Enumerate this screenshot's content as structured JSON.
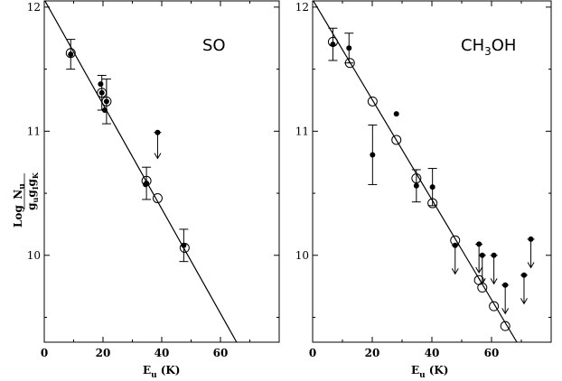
{
  "y_axis_label": {
    "prefix": "Log",
    "numerator": "N",
    "numerator_sub": "u",
    "denominator": "g",
    "denominator_subs": [
      "u",
      "I",
      "K"
    ],
    "denominator_between": "g"
  },
  "chart_data": [
    {
      "type": "scatter",
      "title": "SO",
      "xlabel": "E",
      "xlabel_sub": "u",
      "xlabel_unit": "(K)",
      "xlim": [
        0,
        80
      ],
      "ylim": [
        9.3,
        12.05
      ],
      "x_ticks": [
        "0",
        "20",
        "40",
        "60"
      ],
      "x_tick_values": [
        0,
        20,
        40,
        60
      ],
      "y_ticks": [
        "10",
        "11",
        "12"
      ],
      "y_tick_values": [
        10,
        11,
        12
      ],
      "fit_line": {
        "x": [
          0,
          65.5
        ],
        "y": [
          12.06,
          9.3
        ]
      },
      "observed": [
        {
          "x": 9,
          "y": 11.62,
          "err": 0.12
        },
        {
          "x": 19.2,
          "y": 11.38,
          "err": 0
        },
        {
          "x": 19.6,
          "y": 11.31,
          "err": 0.14
        },
        {
          "x": 20.6,
          "y": 11.17,
          "err": 0
        },
        {
          "x": 21.2,
          "y": 11.24,
          "err": 0.18
        },
        {
          "x": 34.5,
          "y": 10.57,
          "err": 0
        },
        {
          "x": 34.8,
          "y": 10.58,
          "err": 0.13
        },
        {
          "x": 47.5,
          "y": 10.08,
          "err": 0.13
        }
      ],
      "upper_limits": [
        {
          "x": 38.6,
          "y": 10.99,
          "to": 10.78
        }
      ],
      "model": [
        {
          "x": 9,
          "y": 11.63
        },
        {
          "x": 19.6,
          "y": 11.31
        },
        {
          "x": 21.2,
          "y": 11.24
        },
        {
          "x": 34.8,
          "y": 10.6
        },
        {
          "x": 38.6,
          "y": 10.46
        },
        {
          "x": 47.8,
          "y": 10.06
        }
      ]
    },
    {
      "type": "scatter",
      "title": "CH",
      "title_sub": "3",
      "title_rest": "OH",
      "xlabel": "E",
      "xlabel_sub": "u",
      "xlabel_unit": "(K)",
      "xlim": [
        0,
        80
      ],
      "ylim": [
        9.3,
        12.05
      ],
      "x_ticks": [
        "0",
        "20",
        "40",
        "60"
      ],
      "x_tick_values": [
        0,
        20,
        40,
        60
      ],
      "y_ticks": [
        "10",
        "11",
        "12"
      ],
      "y_tick_values": [
        10,
        11,
        12
      ],
      "fit_line": {
        "x": [
          0,
          68.5
        ],
        "y": [
          12.06,
          9.3
        ]
      },
      "observed": [
        {
          "x": 6.8,
          "y": 11.7,
          "err": 0.13
        },
        {
          "x": 12.2,
          "y": 11.67,
          "err": 0.12
        },
        {
          "x": 20.1,
          "y": 10.81,
          "err": 0.24
        },
        {
          "x": 28.1,
          "y": 11.14,
          "err": 0
        },
        {
          "x": 34.8,
          "y": 10.56,
          "err": 0.13
        },
        {
          "x": 40.2,
          "y": 10.55,
          "err": 0.15
        }
      ],
      "upper_limits": [
        {
          "x": 47.8,
          "y": 10.08,
          "to": 9.85
        },
        {
          "x": 55.8,
          "y": 10.09,
          "to": 9.86
        },
        {
          "x": 56.9,
          "y": 10.0,
          "to": 9.77
        },
        {
          "x": 60.8,
          "y": 10.0,
          "to": 9.77
        },
        {
          "x": 64.6,
          "y": 9.76,
          "to": 9.53
        },
        {
          "x": 70.9,
          "y": 9.84,
          "to": 9.61
        },
        {
          "x": 73.2,
          "y": 10.13,
          "to": 9.9
        }
      ],
      "model": [
        {
          "x": 6.8,
          "y": 11.72
        },
        {
          "x": 12.5,
          "y": 11.55
        },
        {
          "x": 20.1,
          "y": 11.24
        },
        {
          "x": 28.1,
          "y": 10.93
        },
        {
          "x": 34.8,
          "y": 10.62
        },
        {
          "x": 40.2,
          "y": 10.42
        },
        {
          "x": 47.8,
          "y": 10.12
        },
        {
          "x": 55.8,
          "y": 9.8
        },
        {
          "x": 56.9,
          "y": 9.74
        },
        {
          "x": 60.8,
          "y": 9.59
        },
        {
          "x": 64.6,
          "y": 9.43
        }
      ]
    }
  ]
}
